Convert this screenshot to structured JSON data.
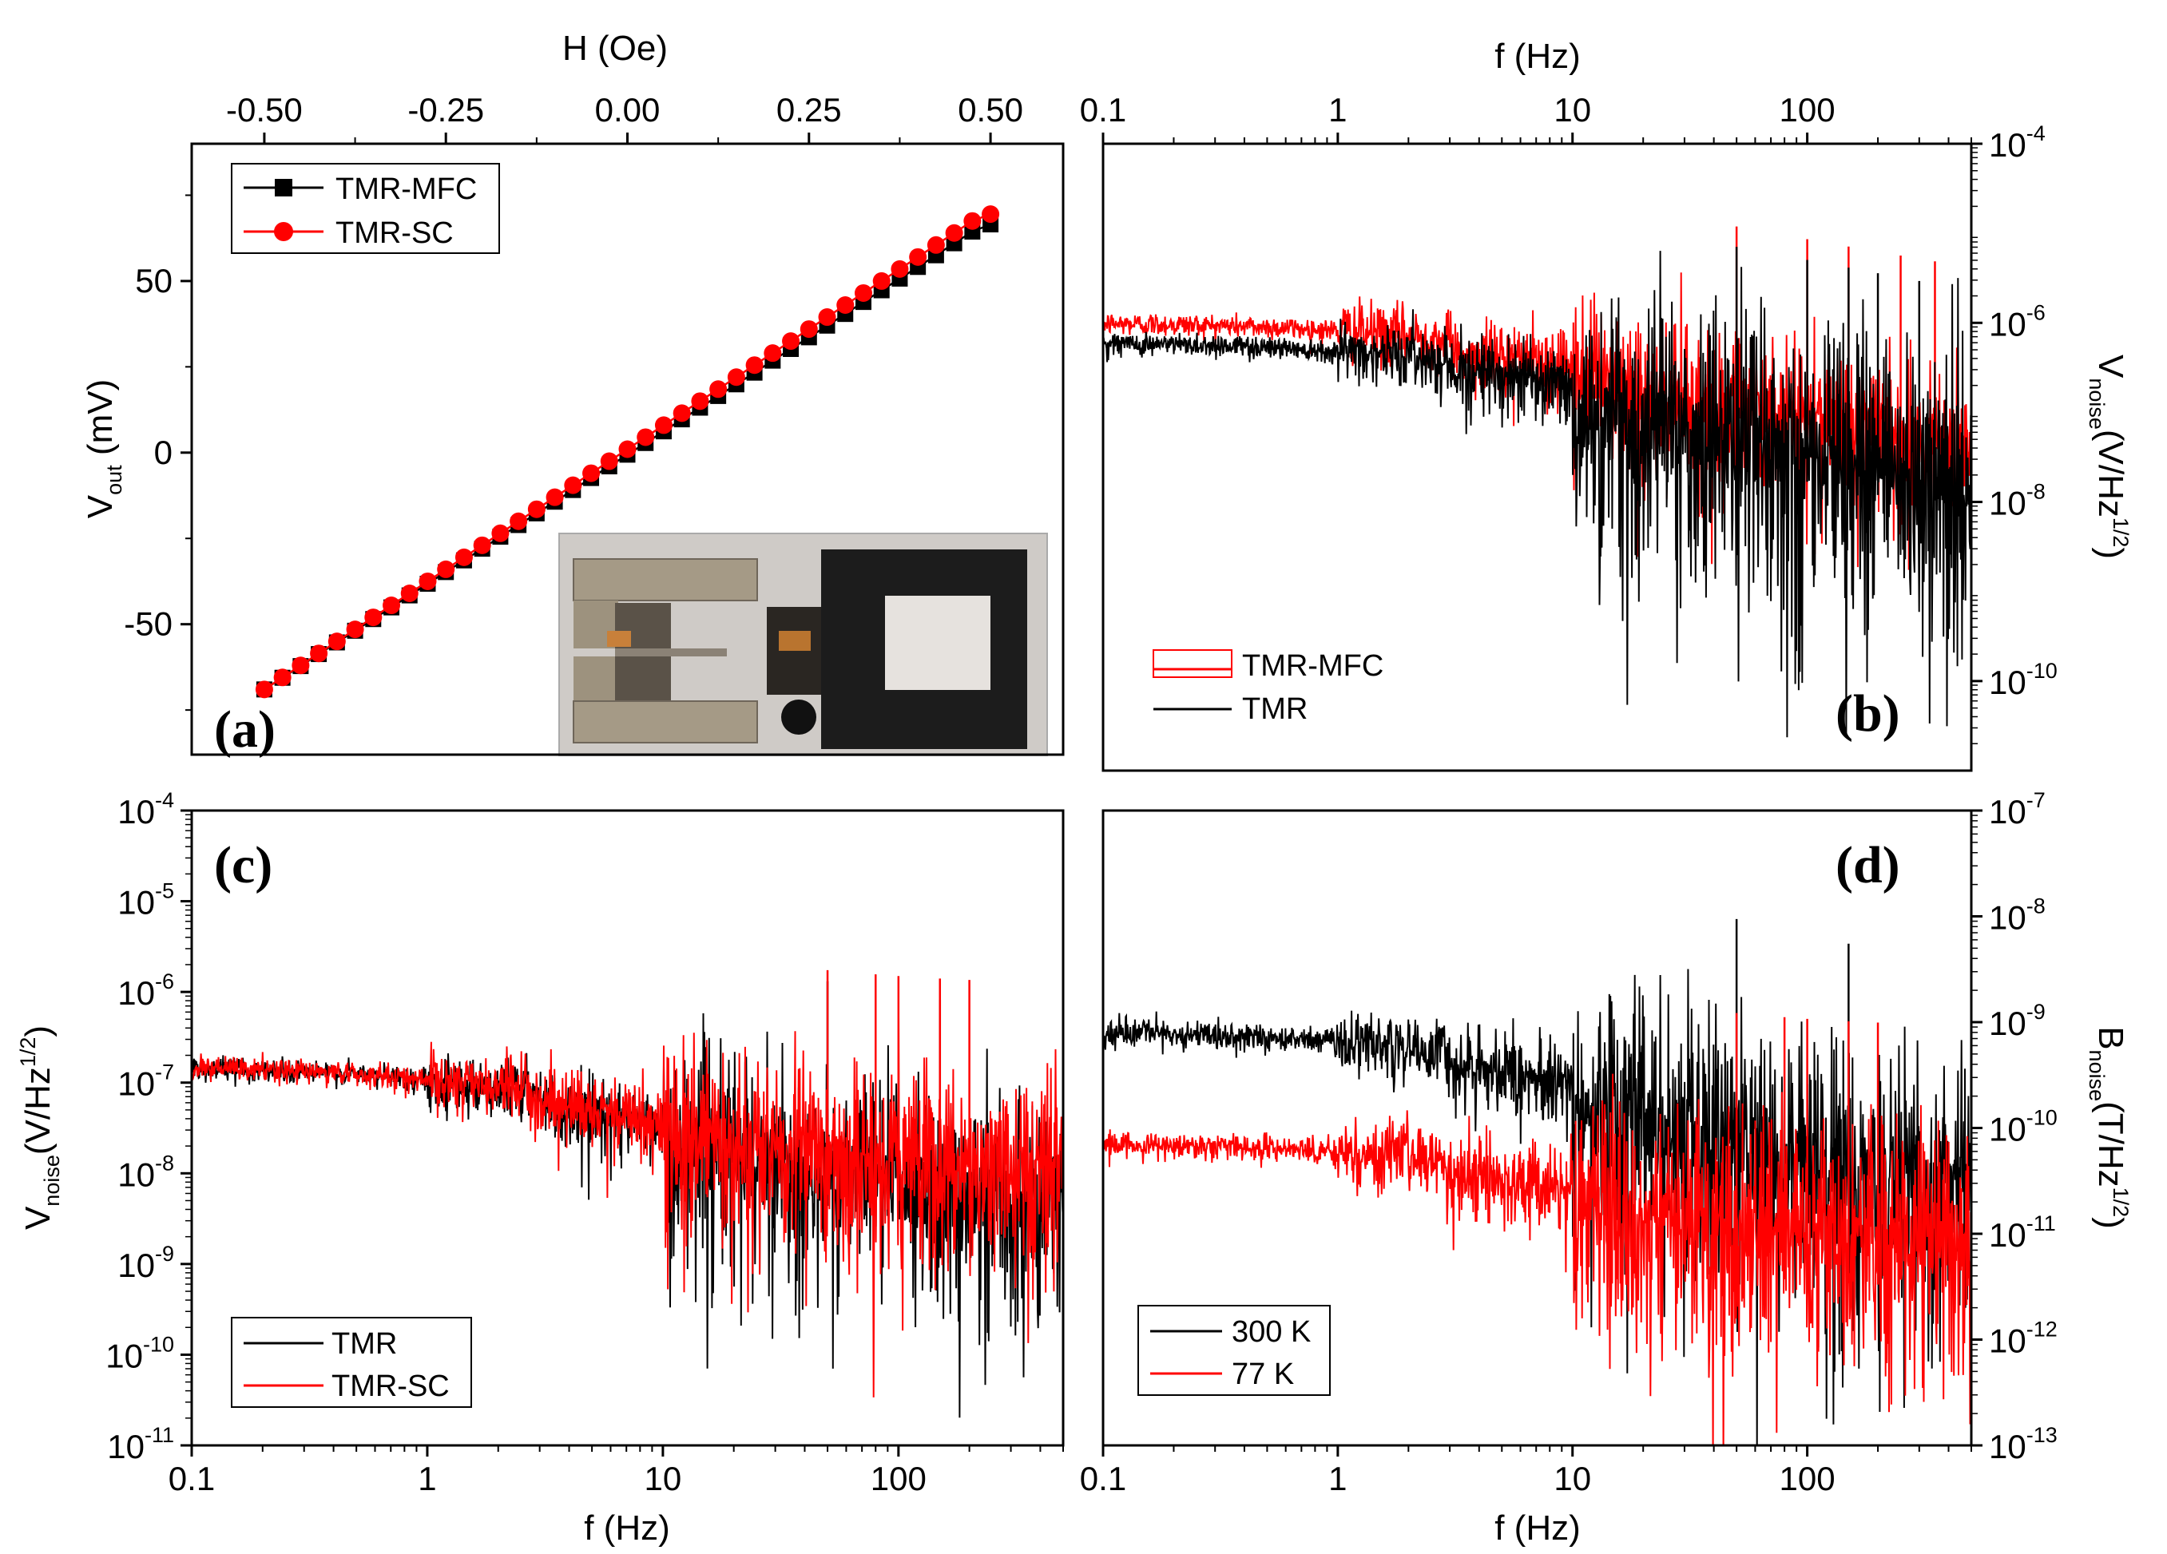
{
  "chart_data": [
    {
      "id": "a",
      "type": "line",
      "panel_label": "(a)",
      "xlabel": "H (Oe)",
      "xlim": [
        -0.6,
        0.6
      ],
      "x_ticks": [
        "-0.50",
        "-0.25",
        "0.00",
        "0.25",
        "0.50"
      ],
      "x_tick_values": [
        -0.5,
        -0.25,
        0,
        0.25,
        0.5
      ],
      "ylabel_main": "V",
      "ylabel_sub": "out",
      "ylabel_tail": " (mV)",
      "ylim": [
        -88,
        90
      ],
      "y_ticks": [
        "-50",
        "0",
        "50"
      ],
      "y_tick_values": [
        -50,
        0,
        50
      ],
      "inset": "photo of TMR sensor chip with flux concentrator",
      "legend_location": "top-left",
      "series": [
        {
          "name": "TMR-MFC",
          "color": "#000000",
          "marker": "square",
          "x": [
            -0.5,
            -0.475,
            -0.45,
            -0.425,
            -0.4,
            -0.375,
            -0.35,
            -0.325,
            -0.3,
            -0.275,
            -0.25,
            -0.225,
            -0.2,
            -0.175,
            -0.15,
            -0.125,
            -0.1,
            -0.075,
            -0.05,
            -0.025,
            0.0,
            0.025,
            0.05,
            0.075,
            0.1,
            0.125,
            0.15,
            0.175,
            0.2,
            0.225,
            0.25,
            0.275,
            0.3,
            0.325,
            0.35,
            0.375,
            0.4,
            0.425,
            0.45,
            0.475,
            0.5
          ],
          "y": [
            -69,
            -65.6,
            -62.2,
            -58.7,
            -55.3,
            -51.9,
            -48.5,
            -45.1,
            -41.6,
            -38.2,
            -34.8,
            -31.4,
            -28,
            -24.5,
            -21.1,
            -17.7,
            -14.3,
            -10.9,
            -7.4,
            -4,
            -0.6,
            2.8,
            6.2,
            9.7,
            13.1,
            16.5,
            19.9,
            23.3,
            26.8,
            30.2,
            33.6,
            37,
            40.4,
            43.9,
            47.3,
            50.7,
            54.1,
            57.5,
            61,
            64.4,
            66.5
          ]
        },
        {
          "name": "TMR-SC",
          "color": "#ff0000",
          "marker": "circle",
          "x": [
            -0.5,
            -0.475,
            -0.45,
            -0.425,
            -0.4,
            -0.375,
            -0.35,
            -0.325,
            -0.3,
            -0.275,
            -0.25,
            -0.225,
            -0.2,
            -0.175,
            -0.15,
            -0.125,
            -0.1,
            -0.075,
            -0.05,
            -0.025,
            0.0,
            0.025,
            0.05,
            0.075,
            0.1,
            0.125,
            0.15,
            0.175,
            0.2,
            0.225,
            0.25,
            0.275,
            0.3,
            0.325,
            0.35,
            0.375,
            0.4,
            0.425,
            0.45,
            0.475,
            0.5
          ],
          "y": [
            -69,
            -65.5,
            -62,
            -58.5,
            -55,
            -51.5,
            -48,
            -44.5,
            -41,
            -37.5,
            -34,
            -30.5,
            -27,
            -23.5,
            -20,
            -16.5,
            -13,
            -9.5,
            -6,
            -2.5,
            1,
            4.5,
            8,
            11.5,
            15,
            18.5,
            22,
            25.5,
            29,
            32.5,
            36,
            39.5,
            43,
            46.5,
            50,
            53.5,
            57,
            60.5,
            64,
            67.5,
            69.5
          ]
        }
      ]
    },
    {
      "id": "b",
      "type": "line",
      "panel_label": "(b)",
      "xlabel": "f (Hz)",
      "x_scale": "log",
      "xlim": [
        0.1,
        500
      ],
      "x_ticks": [
        "0.1",
        "1",
        "10",
        "100"
      ],
      "y_scale": "log",
      "ylim": [
        1e-11,
        0.0001
      ],
      "y_ticks": [
        "10",
        "10",
        "10",
        "10"
      ],
      "y_tick_exponents": [
        "-10",
        "-8",
        "-6",
        "-4"
      ],
      "y_tick_values": [
        1e-10,
        1e-08,
        1e-06,
        0.0001
      ],
      "ylabel_main": "V",
      "ylabel_sub": "noise",
      "ylabel_mid": "(V/Hz",
      "ylabel_sup": "1/2",
      "ylabel_tail": ")",
      "legend_location": "bottom-left",
      "series": [
        {
          "name": "TMR-MFC",
          "color": "#ff0000",
          "plateau": 1e-06,
          "corner_hz": 2.0,
          "floor": 3e-08,
          "scatter_decades": 0.7,
          "spikes_hz": [
            50,
            100,
            150,
            250,
            350
          ]
        },
        {
          "name": "TMR",
          "color": "#000000",
          "plateau": 6e-07,
          "corner_hz": 2.0,
          "floor": 2.5e-09,
          "scatter_decades": 1.2,
          "spikes_hz": [
            50,
            100,
            150,
            200,
            300
          ]
        }
      ]
    },
    {
      "id": "c",
      "type": "line",
      "panel_label": "(c)",
      "xlabel": "f (Hz)",
      "x_scale": "log",
      "xlim": [
        0.1,
        500
      ],
      "x_ticks": [
        "0.1",
        "1",
        "10",
        "100"
      ],
      "y_scale": "log",
      "ylim": [
        1e-11,
        0.0001
      ],
      "y_ticks": [
        "10",
        "10",
        "10",
        "10",
        "10",
        "10",
        "10",
        "10"
      ],
      "y_tick_exponents": [
        "-11",
        "-10",
        "-9",
        "-8",
        "-7",
        "-6",
        "-5",
        "-4"
      ],
      "y_tick_values": [
        1e-11,
        1e-10,
        1e-09,
        1e-08,
        1e-07,
        1e-06,
        1e-05,
        0.0001
      ],
      "ylabel_main": "V",
      "ylabel_sub": "noise",
      "ylabel_mid": "(V/Hz",
      "ylabel_sup": "1/2",
      "ylabel_tail": ")",
      "legend_location": "bottom-left",
      "series": [
        {
          "name": "TMR",
          "color": "#000000",
          "plateau": 1.5e-07,
          "corner_hz": 1.0,
          "floor": 6e-09,
          "scatter_decades": 0.9,
          "spikes_hz": [
            50,
            150
          ]
        },
        {
          "name": "TMR-SC",
          "color": "#ff0000",
          "plateau": 1.5e-07,
          "corner_hz": 1.0,
          "floor": 2e-08,
          "scatter_decades": 0.8,
          "spikes_hz": [
            50,
            80,
            100,
            150,
            200
          ]
        }
      ]
    },
    {
      "id": "d",
      "type": "line",
      "panel_label": "(d)",
      "xlabel": "f (Hz)",
      "x_scale": "log",
      "xlim": [
        0.1,
        500
      ],
      "x_ticks": [
        "0.1",
        "1",
        "10",
        "100"
      ],
      "y_scale": "log",
      "ylim": [
        1e-13,
        1e-07
      ],
      "y_ticks": [
        "10",
        "10",
        "10",
        "10",
        "10",
        "10",
        "10"
      ],
      "y_tick_exponents": [
        "-13",
        "-12",
        "-11",
        "-10",
        "-9",
        "-8",
        "-7"
      ],
      "y_tick_values": [
        1e-13,
        1e-12,
        1e-11,
        1e-10,
        1e-09,
        1e-08,
        1e-07
      ],
      "ylabel_main": "B",
      "ylabel_sub": "noise",
      "ylabel_mid": "(T/Hz",
      "ylabel_sup": "1/2",
      "ylabel_tail": ")",
      "legend_location": "bottom-left",
      "series": [
        {
          "name": "300 K",
          "color": "#000000",
          "plateau": 8e-10,
          "corner_hz": 2.0,
          "floor": 6e-12,
          "scatter_decades": 1.0,
          "spikes_hz": [
            50,
            150
          ]
        },
        {
          "name": "77 K",
          "color": "#ff0000",
          "plateau": 7e-11,
          "corner_hz": 2.0,
          "floor": 1.5e-11,
          "scatter_decades": 0.9,
          "spikes_hz": [
            50,
            80,
            100,
            150,
            200
          ]
        }
      ]
    }
  ]
}
